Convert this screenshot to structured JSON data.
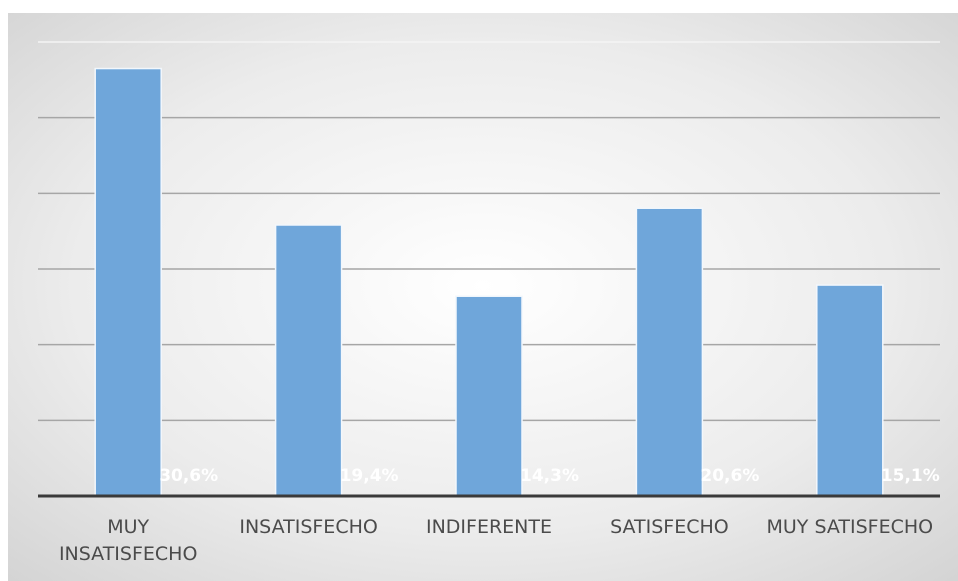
{
  "chart_data": {
    "type": "bar",
    "title": "",
    "xlabel": "",
    "ylabel": "",
    "categories": [
      "MUY\nINSATISFECHO",
      "INSATISFECHO",
      "INDIFERENTE",
      "SATISFECHO",
      "MUY SATISFECHO"
    ],
    "values": [
      30.6,
      19.4,
      14.3,
      20.6,
      15.1
    ],
    "data_labels": [
      "30,6%",
      "19,4%",
      "14,3%",
      "20,6%",
      "15,1%"
    ],
    "ylim": [
      0,
      32.5
    ],
    "grid": true,
    "legend": "none",
    "colors": {
      "bar": "#6fa6da",
      "bar_edge": "#f2f7fc",
      "data_label": "#ffffff",
      "axis": "#3a3a3a",
      "grid": "#a6a6a6",
      "background_light": "#ffffff",
      "background_dark": "#cfcfcf"
    }
  }
}
